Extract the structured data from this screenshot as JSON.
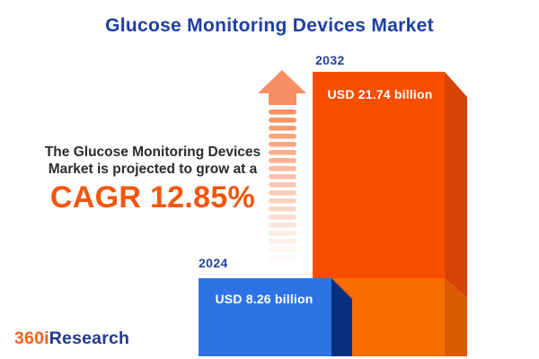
{
  "title": {
    "text": "Glucose Monitoring Devices Market",
    "color": "#1E3EA5"
  },
  "annotation": {
    "line1": "The Glucose Monitoring Devices",
    "line2": "Market is projected to grow at a",
    "cagr_text": "CAGR 12.85%",
    "text_color": "#2B2B2B",
    "cagr_color": "#F4560E"
  },
  "chart_data": {
    "type": "bar",
    "title": "Glucose Monitoring Devices Market",
    "categories": [
      "2024",
      "2032"
    ],
    "values": [
      8.26,
      21.74
    ],
    "unit": "USD billion",
    "value_labels": [
      "USD 8.26 billion",
      "USD 21.74 billion"
    ],
    "cagr_percent": 12.85,
    "legend_position": "none",
    "grid": false
  },
  "bars": [
    {
      "year": "2024",
      "label": "USD 8.26 billion",
      "face_color": "#2E73E6",
      "side_color": "#08307F"
    },
    {
      "year": "2032",
      "label": "USD 21.74 billion",
      "face_color": "#F94E00",
      "face_lower_color": "#FB6C00",
      "side_color": "#D64306",
      "side_lower_color": "#DD5B00"
    }
  ],
  "arrow": {
    "head_color": "#F78F63",
    "stripe_color": "#F78F5E",
    "stripe_count": 19
  },
  "year_label_color": "#24419B",
  "logo": {
    "prefix": "360i",
    "suffix": "Research",
    "prefix_color": "#F26522",
    "suffix_color": "#20398F"
  }
}
